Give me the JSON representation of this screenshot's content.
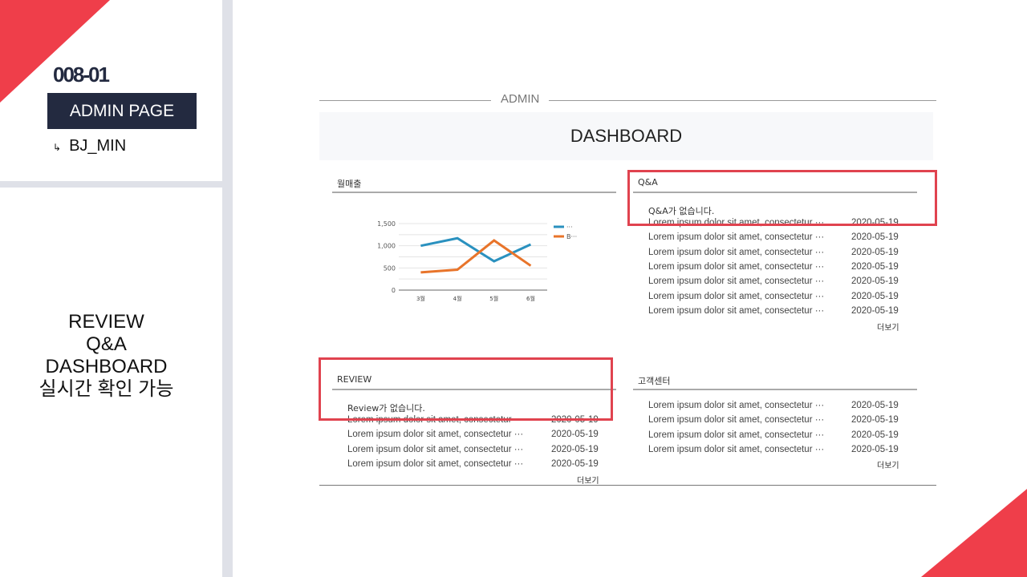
{
  "slide": {
    "code": "008-01",
    "badge": "ADMIN PAGE",
    "author": "BJ_MIN",
    "arrow": "↳",
    "description": [
      "REVIEW",
      "Q&A",
      "DASHBOARD",
      "실시간 확인 가능"
    ],
    "accent": "#ef3e4a",
    "navy": "#232a40"
  },
  "admin": {
    "label": "ADMIN",
    "title": "DASHBOARD"
  },
  "sales": {
    "title": "월매출"
  },
  "chart_data": {
    "type": "line",
    "categories": [
      "3월",
      "4월",
      "5월",
      "6월"
    ],
    "series": [
      {
        "name": "···",
        "color": "#2a91bf",
        "values": [
          1000,
          1170,
          650,
          1030
        ]
      },
      {
        "name": "B···",
        "color": "#e8742a",
        "values": [
          400,
          460,
          1120,
          550
        ]
      }
    ],
    "yticks": [
      "0",
      "500",
      "1,000",
      "1,500"
    ],
    "ylim": [
      0,
      1500
    ],
    "grid": true,
    "legend": "right"
  },
  "qna": {
    "title": "Q&A",
    "empty": "Q&A가 없습니다.",
    "more": "더보기",
    "rows": [
      {
        "text": "Lorem ipsum dolor sit amet, consectetur ···",
        "date": "2020-05-19"
      },
      {
        "text": "Lorem ipsum dolor sit amet, consectetur ···",
        "date": "2020-05-19"
      },
      {
        "text": "Lorem ipsum dolor sit amet, consectetur ···",
        "date": "2020-05-19"
      },
      {
        "text": "Lorem ipsum dolor sit amet, consectetur ···",
        "date": "2020-05-19"
      },
      {
        "text": "Lorem ipsum dolor sit amet, consectetur ···",
        "date": "2020-05-19"
      },
      {
        "text": "Lorem ipsum dolor sit amet, consectetur ···",
        "date": "2020-05-19"
      },
      {
        "text": "Lorem ipsum dolor sit amet, consectetur ···",
        "date": "2020-05-19"
      }
    ]
  },
  "review": {
    "title": "REVIEW",
    "empty": "Review가 없습니다.",
    "more": "더보기",
    "rows": [
      {
        "text": "Lorem ipsum dolor sit amet, consectetur ···",
        "date": "2020-05-19"
      },
      {
        "text": "Lorem ipsum dolor sit amet, consectetur ···",
        "date": "2020-05-19"
      },
      {
        "text": "Lorem ipsum dolor sit amet, consectetur ···",
        "date": "2020-05-19"
      },
      {
        "text": "Lorem ipsum dolor sit amet, consectetur ···",
        "date": "2020-05-19"
      }
    ]
  },
  "support": {
    "title": "고객센터",
    "more": "더보기",
    "rows": [
      {
        "text": "Lorem ipsum dolor sit amet, consectetur ···",
        "date": "2020-05-19"
      },
      {
        "text": "Lorem ipsum dolor sit amet, consectetur ···",
        "date": "2020-05-19"
      },
      {
        "text": "Lorem ipsum dolor sit amet, consectetur ···",
        "date": "2020-05-19"
      },
      {
        "text": "Lorem ipsum dolor sit amet, consectetur ···",
        "date": "2020-05-19"
      }
    ]
  }
}
